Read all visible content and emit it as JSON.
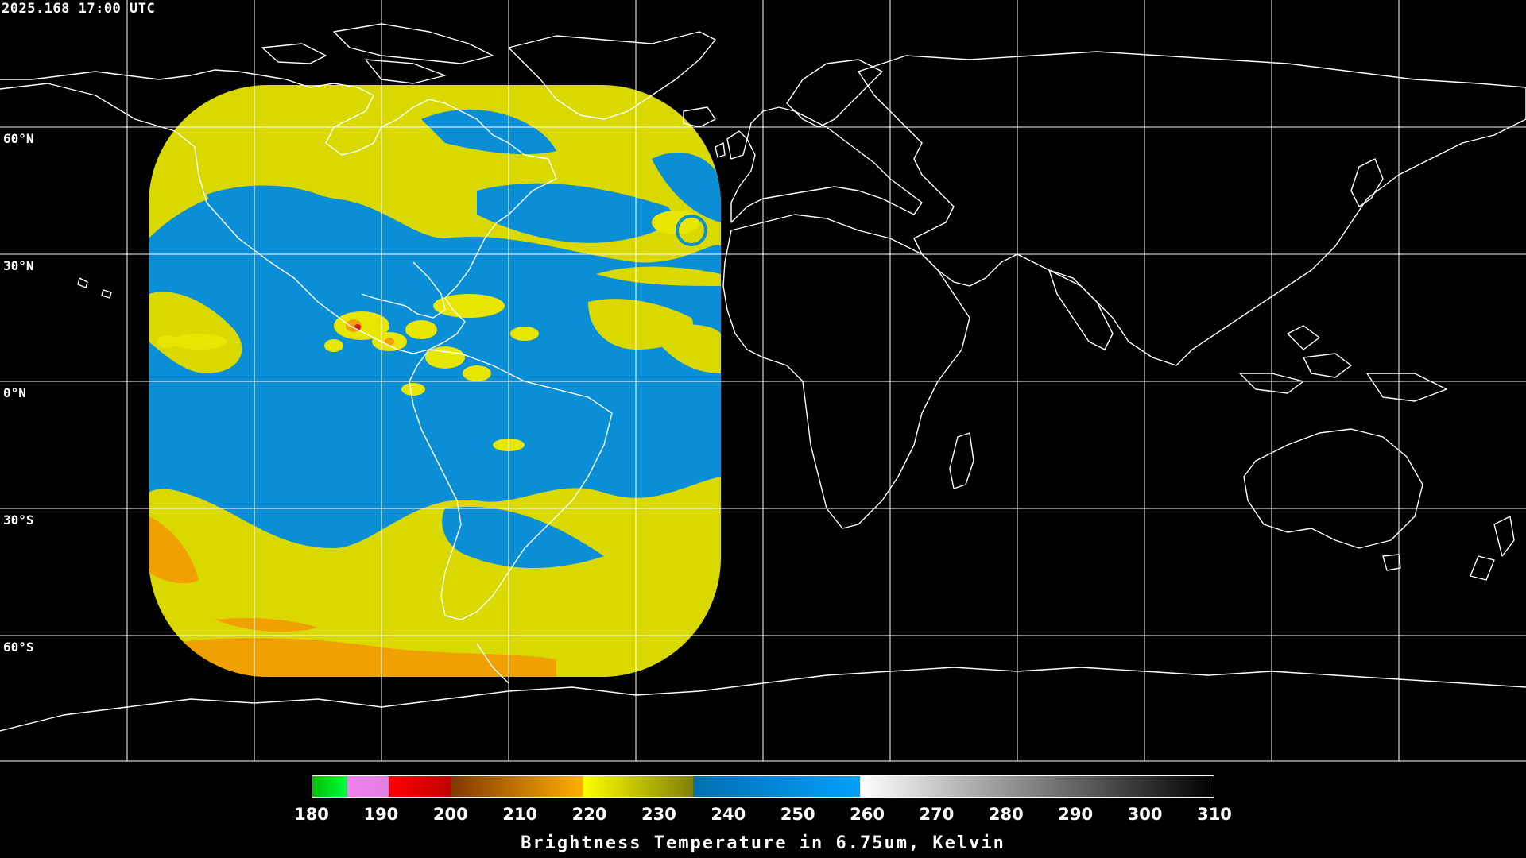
{
  "header": {
    "timestamp": "2025.168 17:00 UTC"
  },
  "map": {
    "projection": "equirectangular",
    "lon_range": [
      -180,
      180
    ],
    "lat_range": [
      -90,
      90
    ],
    "graticule_step_deg": 20,
    "lat_labels": [
      {
        "text": "60°N",
        "lat": 60
      },
      {
        "text": "30°N",
        "lat": 30
      },
      {
        "text": "0°N",
        "lat": 0
      },
      {
        "text": "30°S",
        "lat": -30
      },
      {
        "text": "60°S",
        "lat": -60
      }
    ],
    "coastline_color": "#ffffff",
    "grid_color": "#ffffff",
    "background_color": "#000000",
    "satellite_field": {
      "description_colors": {
        "dry_blue": "#0a8fd6",
        "moist_yellow": "#e0e000",
        "warm_orange": "#f0a000",
        "deep_red": "#d81818"
      }
    }
  },
  "colorbar": {
    "title": "Brightness Temperature in 6.75um, Kelvin",
    "min": 180,
    "max": 310,
    "ticks": [
      "180",
      "190",
      "200",
      "210",
      "220",
      "230",
      "240",
      "250",
      "260",
      "270",
      "280",
      "290",
      "300",
      "310"
    ],
    "segments": [
      {
        "from": 180,
        "to": 185,
        "colors": [
          "#00c000",
          "#00ff40"
        ]
      },
      {
        "from": 185,
        "to": 191,
        "colors": [
          "#f080f0",
          "#e080e0"
        ]
      },
      {
        "from": 191,
        "to": 200,
        "colors": [
          "#ff0000",
          "#c00000"
        ]
      },
      {
        "from": 200,
        "to": 219,
        "colors": [
          "#803800",
          "#ffb000"
        ]
      },
      {
        "from": 219,
        "to": 235,
        "colors": [
          "#ffff00",
          "#808000"
        ]
      },
      {
        "from": 235,
        "to": 259,
        "colors": [
          "#0070b0",
          "#00a0ff"
        ]
      },
      {
        "from": 259,
        "to": 310,
        "colors": [
          "#ffffff",
          "#000000"
        ]
      }
    ]
  }
}
